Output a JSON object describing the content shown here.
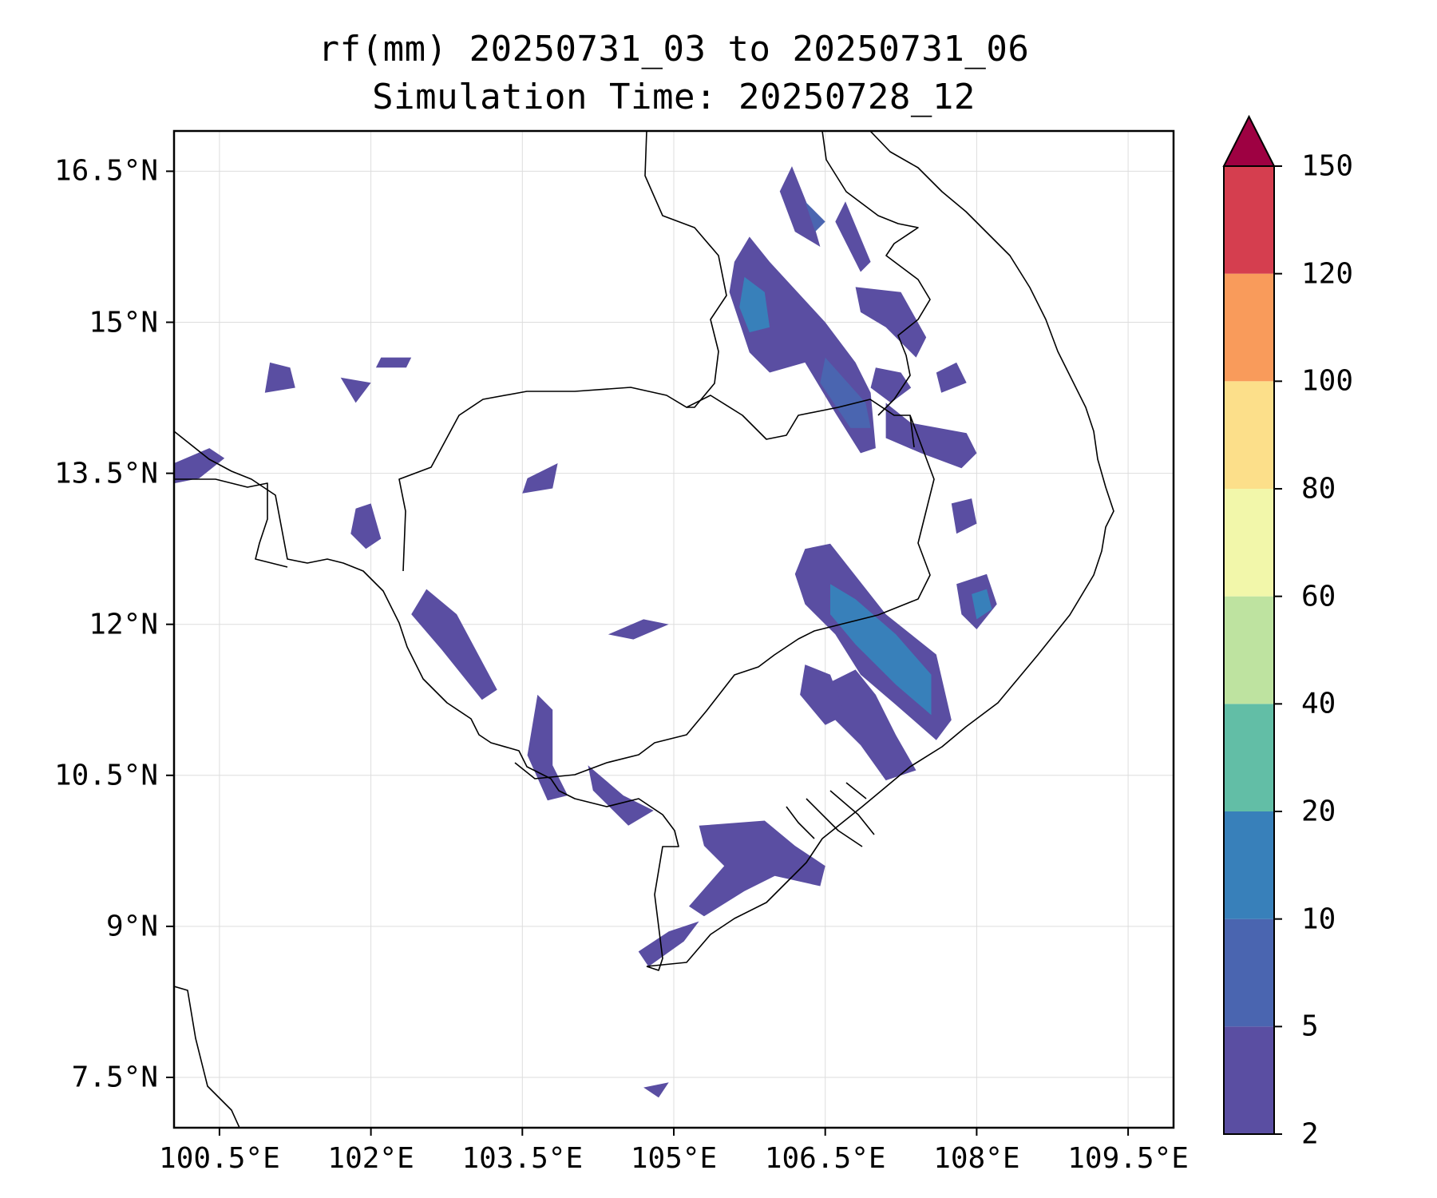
{
  "title": {
    "line1": "rf(mm) 20250731_03 to 20250731_06",
    "line2": "Simulation Time: 20250728_12"
  },
  "map": {
    "lon_range": [
      100.05,
      109.95
    ],
    "lat_range": [
      7.0,
      16.9
    ],
    "lon_ticks": [
      {
        "value": 100.5,
        "label": "100.5°E"
      },
      {
        "value": 102.0,
        "label": "102°E"
      },
      {
        "value": 103.5,
        "label": "103.5°E"
      },
      {
        "value": 105.0,
        "label": "105°E"
      },
      {
        "value": 106.5,
        "label": "106.5°E"
      },
      {
        "value": 108.0,
        "label": "108°E"
      },
      {
        "value": 109.5,
        "label": "109.5°E"
      }
    ],
    "lat_ticks": [
      {
        "value": 16.5,
        "label": "16.5°N"
      },
      {
        "value": 15.0,
        "label": "15°N"
      },
      {
        "value": 13.5,
        "label": "13.5°N"
      },
      {
        "value": 12.0,
        "label": "12°N"
      },
      {
        "value": 10.5,
        "label": "10.5°N"
      },
      {
        "value": 9.0,
        "label": "9°N"
      },
      {
        "value": 7.5,
        "label": "7.5°N"
      }
    ],
    "gridlines": true
  },
  "colorbar": {
    "levels": [
      {
        "value": 2,
        "label": "2"
      },
      {
        "value": 5,
        "label": "5"
      },
      {
        "value": 10,
        "label": "10"
      },
      {
        "value": 20,
        "label": "20"
      },
      {
        "value": 40,
        "label": "40"
      },
      {
        "value": 60,
        "label": "60"
      },
      {
        "value": 80,
        "label": "80"
      },
      {
        "value": 100,
        "label": "100"
      },
      {
        "value": 120,
        "label": "120"
      },
      {
        "value": 150,
        "label": "150"
      }
    ],
    "colors": [
      "#5a4ea2",
      "#4a65b0",
      "#3880ba",
      "#62bea6",
      "#bee3a0",
      "#f2f7aa",
      "#fcdf8a",
      "#f99b5b",
      "#d53e4f"
    ],
    "extend_color": "#9e0142",
    "extend": "max"
  },
  "chart_data": {
    "type": "heatmap",
    "variable": "rf(mm)",
    "period": [
      "20250731_03",
      "20250731_06"
    ],
    "simulation_time": "20250728_12",
    "rain_areas": [
      {
        "band": "2-5",
        "points": [
          [
            106.17,
            16.55
          ],
          [
            106.35,
            16.1
          ],
          [
            106.45,
            15.75
          ],
          [
            106.2,
            15.9
          ],
          [
            106.05,
            16.3
          ]
        ]
      },
      {
        "band": "5-10",
        "points": [
          [
            106.5,
            16.0
          ],
          [
            106.3,
            16.2
          ],
          [
            106.4,
            15.9
          ]
        ]
      },
      {
        "band": "2-5",
        "points": [
          [
            106.7,
            16.2
          ],
          [
            106.95,
            15.6
          ],
          [
            106.85,
            15.5
          ],
          [
            106.6,
            16.0
          ]
        ]
      },
      {
        "band": "2-5",
        "points": [
          [
            105.75,
            15.85
          ],
          [
            105.95,
            15.6
          ],
          [
            106.5,
            15.0
          ],
          [
            106.8,
            14.6
          ],
          [
            106.95,
            14.3
          ],
          [
            107.0,
            13.75
          ],
          [
            106.85,
            13.7
          ],
          [
            106.6,
            14.1
          ],
          [
            106.3,
            14.6
          ],
          [
            105.95,
            14.5
          ],
          [
            105.75,
            14.7
          ],
          [
            105.55,
            15.3
          ],
          [
            105.6,
            15.6
          ]
        ]
      },
      {
        "band": "10-20",
        "points": [
          [
            105.7,
            15.45
          ],
          [
            105.9,
            15.3
          ],
          [
            105.95,
            14.95
          ],
          [
            105.75,
            14.9
          ],
          [
            105.65,
            15.15
          ]
        ]
      },
      {
        "band": "5-10",
        "points": [
          [
            106.5,
            14.65
          ],
          [
            106.9,
            14.2
          ],
          [
            106.95,
            13.95
          ],
          [
            106.75,
            13.95
          ],
          [
            106.45,
            14.4
          ]
        ]
      },
      {
        "band": "2-5",
        "points": [
          [
            106.8,
            15.35
          ],
          [
            107.25,
            15.3
          ],
          [
            107.5,
            14.85
          ],
          [
            107.4,
            14.65
          ],
          [
            107.1,
            14.95
          ],
          [
            106.85,
            15.1
          ]
        ]
      },
      {
        "band": "2-5",
        "points": [
          [
            107.0,
            14.55
          ],
          [
            107.25,
            14.5
          ],
          [
            107.35,
            14.35
          ],
          [
            107.15,
            14.2
          ],
          [
            106.95,
            14.35
          ]
        ]
      },
      {
        "band": "2-5",
        "points": [
          [
            107.6,
            14.5
          ],
          [
            107.8,
            14.6
          ],
          [
            107.9,
            14.4
          ],
          [
            107.65,
            14.3
          ]
        ]
      },
      {
        "band": "2-5",
        "points": [
          [
            107.1,
            14.2
          ],
          [
            107.35,
            14.0
          ],
          [
            107.9,
            13.9
          ],
          [
            108.0,
            13.7
          ],
          [
            107.85,
            13.55
          ],
          [
            107.45,
            13.7
          ],
          [
            107.1,
            13.85
          ]
        ]
      },
      {
        "band": "2-5",
        "points": [
          [
            106.3,
            12.75
          ],
          [
            106.55,
            12.8
          ],
          [
            107.1,
            12.1
          ],
          [
            107.6,
            11.7
          ],
          [
            107.75,
            11.05
          ],
          [
            107.6,
            10.85
          ],
          [
            107.2,
            11.2
          ],
          [
            106.85,
            11.5
          ],
          [
            106.6,
            11.9
          ],
          [
            106.3,
            12.2
          ],
          [
            106.2,
            12.5
          ]
        ]
      },
      {
        "band": "10-20",
        "points": [
          [
            106.55,
            12.4
          ],
          [
            106.8,
            12.25
          ],
          [
            107.2,
            11.9
          ],
          [
            107.55,
            11.5
          ],
          [
            107.55,
            11.1
          ],
          [
            107.2,
            11.4
          ],
          [
            106.8,
            11.8
          ],
          [
            106.55,
            12.1
          ]
        ]
      },
      {
        "band": "2-5",
        "points": [
          [
            106.5,
            11.4
          ],
          [
            106.8,
            11.55
          ],
          [
            107.0,
            11.3
          ],
          [
            107.2,
            10.9
          ],
          [
            107.4,
            10.55
          ],
          [
            107.1,
            10.45
          ],
          [
            106.85,
            10.8
          ],
          [
            106.55,
            11.1
          ]
        ]
      },
      {
        "band": "2-5",
        "points": [
          [
            106.3,
            11.6
          ],
          [
            106.55,
            11.5
          ],
          [
            106.7,
            11.1
          ],
          [
            106.5,
            11.0
          ],
          [
            106.25,
            11.3
          ]
        ]
      },
      {
        "band": "2-5",
        "points": [
          [
            107.8,
            12.4
          ],
          [
            108.1,
            12.5
          ],
          [
            108.2,
            12.2
          ],
          [
            108.0,
            11.95
          ],
          [
            107.85,
            12.1
          ]
        ]
      },
      {
        "band": "10-20",
        "points": [
          [
            107.95,
            12.3
          ],
          [
            108.1,
            12.35
          ],
          [
            108.15,
            12.15
          ],
          [
            108.0,
            12.05
          ]
        ]
      },
      {
        "band": "2-5",
        "points": [
          [
            107.75,
            13.2
          ],
          [
            107.95,
            13.25
          ],
          [
            108.0,
            13.0
          ],
          [
            107.8,
            12.9
          ]
        ]
      },
      {
        "band": "2-5",
        "points": [
          [
            102.55,
            12.35
          ],
          [
            102.85,
            12.1
          ],
          [
            103.25,
            11.35
          ],
          [
            103.1,
            11.25
          ],
          [
            102.7,
            11.75
          ],
          [
            102.4,
            12.1
          ]
        ]
      },
      {
        "band": "2-5",
        "points": [
          [
            101.85,
            13.15
          ],
          [
            102.0,
            13.2
          ],
          [
            102.1,
            12.85
          ],
          [
            101.95,
            12.75
          ],
          [
            101.8,
            12.9
          ]
        ]
      },
      {
        "band": "2-5",
        "points": [
          [
            103.65,
            11.3
          ],
          [
            103.8,
            11.15
          ],
          [
            103.8,
            10.6
          ],
          [
            103.95,
            10.3
          ],
          [
            103.75,
            10.25
          ],
          [
            103.55,
            10.7
          ]
        ]
      },
      {
        "band": "2-5",
        "points": [
          [
            104.15,
            10.6
          ],
          [
            104.5,
            10.3
          ],
          [
            104.8,
            10.15
          ],
          [
            104.55,
            10.0
          ],
          [
            104.2,
            10.35
          ]
        ]
      },
      {
        "band": "2-5",
        "points": [
          [
            105.25,
            10.0
          ],
          [
            105.9,
            10.05
          ],
          [
            106.2,
            9.8
          ],
          [
            106.5,
            9.6
          ],
          [
            106.45,
            9.4
          ],
          [
            106.0,
            9.5
          ],
          [
            105.7,
            9.35
          ],
          [
            105.3,
            9.1
          ],
          [
            105.15,
            9.2
          ],
          [
            105.5,
            9.6
          ],
          [
            105.3,
            9.8
          ]
        ]
      },
      {
        "band": "2-5",
        "points": [
          [
            104.65,
            8.75
          ],
          [
            104.95,
            8.95
          ],
          [
            105.25,
            9.05
          ],
          [
            105.1,
            8.85
          ],
          [
            104.75,
            8.6
          ]
        ]
      },
      {
        "band": "2-5",
        "points": [
          [
            104.35,
            11.9
          ],
          [
            104.7,
            12.05
          ],
          [
            104.95,
            12.0
          ],
          [
            104.6,
            11.85
          ]
        ]
      },
      {
        "band": "2-5",
        "points": [
          [
            103.55,
            13.45
          ],
          [
            103.85,
            13.6
          ],
          [
            103.8,
            13.35
          ],
          [
            103.5,
            13.3
          ]
        ]
      },
      {
        "band": "2-5",
        "points": [
          [
            101.0,
            14.6
          ],
          [
            101.2,
            14.55
          ],
          [
            101.25,
            14.35
          ],
          [
            100.95,
            14.3
          ]
        ]
      },
      {
        "band": "2-5",
        "points": [
          [
            101.7,
            14.45
          ],
          [
            102.0,
            14.4
          ],
          [
            101.85,
            14.2
          ]
        ]
      },
      {
        "band": "2-5",
        "points": [
          [
            102.1,
            14.65
          ],
          [
            102.4,
            14.65
          ],
          [
            102.35,
            14.55
          ],
          [
            102.05,
            14.55
          ]
        ]
      },
      {
        "band": "2-5",
        "points": [
          [
            100.05,
            13.6
          ],
          [
            100.4,
            13.75
          ],
          [
            100.55,
            13.65
          ],
          [
            100.3,
            13.45
          ],
          [
            100.05,
            13.4
          ]
        ]
      },
      {
        "band": "2-5",
        "points": [
          [
            104.7,
            7.4
          ],
          [
            104.95,
            7.45
          ],
          [
            104.85,
            7.3
          ]
        ]
      }
    ]
  }
}
